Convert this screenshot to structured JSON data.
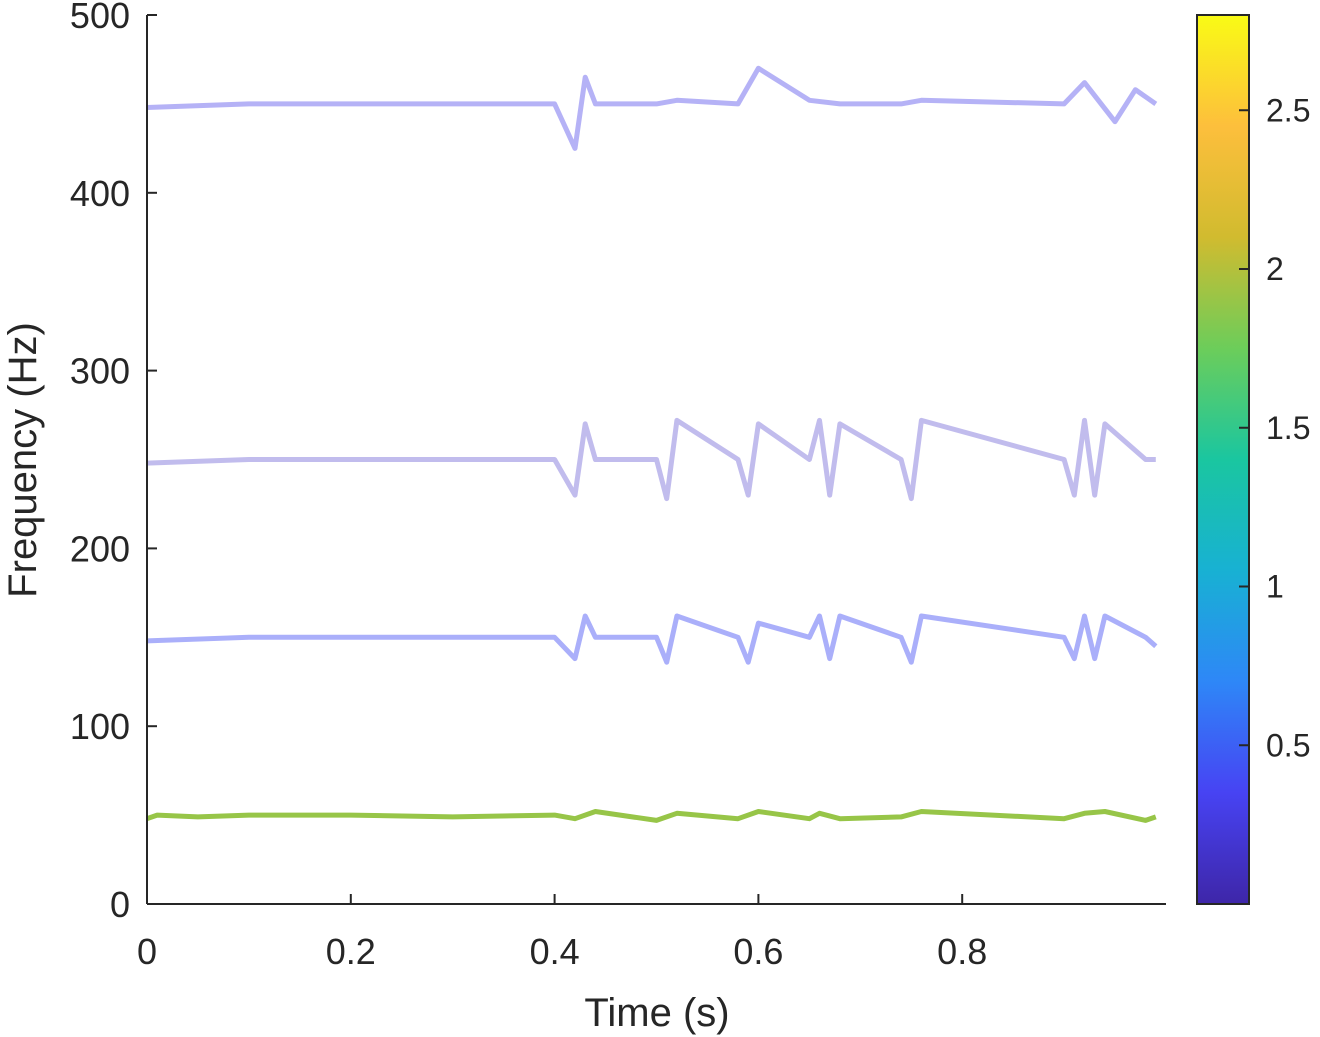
{
  "chart_data": {
    "type": "line",
    "title": "",
    "xlabel": "Time (s)",
    "ylabel": "Frequency (Hz)",
    "xlim": [
      0,
      1
    ],
    "ylim": [
      0,
      500
    ],
    "x_ticks": [
      0,
      0.2,
      0.4,
      0.6,
      0.8
    ],
    "x_tick_labels": [
      "0",
      "0.2",
      "0.4",
      "0.6",
      "0.8"
    ],
    "y_ticks": [
      0,
      100,
      200,
      300,
      400,
      500
    ],
    "y_tick_labels": [
      "0",
      "100",
      "200",
      "300",
      "400",
      "500"
    ],
    "grid": false,
    "legend": "none",
    "colorbar": {
      "range": [
        0,
        2.8
      ],
      "ticks": [
        0.5,
        1,
        1.5,
        2,
        2.5
      ],
      "tick_labels": [
        "0.5",
        "1",
        "1.5",
        "2",
        "2.5"
      ],
      "colormap": [
        "#3e26a8",
        "#4743f3",
        "#2e87f7",
        "#18b1d3",
        "#1ac6a0",
        "#6ccd5a",
        "#d1bb2f",
        "#fdbf3c",
        "#f9fb15"
      ]
    },
    "series": [
      {
        "frequency_hz": 50,
        "magnitude": 1.9,
        "x": [
          0.0,
          0.01,
          0.05,
          0.1,
          0.2,
          0.3,
          0.4,
          0.42,
          0.44,
          0.5,
          0.52,
          0.58,
          0.6,
          0.65,
          0.66,
          0.68,
          0.74,
          0.76,
          0.9,
          0.92,
          0.94,
          0.98,
          0.99
        ],
        "y": [
          48,
          50,
          49,
          50,
          50,
          49,
          50,
          48,
          52,
          47,
          51,
          48,
          52,
          48,
          51,
          48,
          49,
          52,
          48,
          51,
          52,
          47,
          49
        ]
      },
      {
        "frequency_hz": 150,
        "magnitude": 0.4,
        "x": [
          0.0,
          0.1,
          0.2,
          0.3,
          0.4,
          0.42,
          0.43,
          0.44,
          0.5,
          0.51,
          0.52,
          0.58,
          0.59,
          0.6,
          0.65,
          0.66,
          0.67,
          0.68,
          0.74,
          0.75,
          0.76,
          0.9,
          0.91,
          0.92,
          0.93,
          0.94,
          0.98,
          0.99
        ],
        "y": [
          148,
          150,
          150,
          150,
          150,
          138,
          162,
          150,
          150,
          136,
          162,
          150,
          136,
          158,
          150,
          162,
          138,
          162,
          150,
          136,
          162,
          150,
          138,
          162,
          138,
          162,
          150,
          145
        ]
      },
      {
        "frequency_hz": 250,
        "magnitude": 0.15,
        "x": [
          0.0,
          0.1,
          0.2,
          0.3,
          0.4,
          0.42,
          0.43,
          0.44,
          0.5,
          0.51,
          0.52,
          0.58,
          0.59,
          0.6,
          0.65,
          0.66,
          0.67,
          0.68,
          0.74,
          0.75,
          0.76,
          0.9,
          0.91,
          0.92,
          0.93,
          0.94,
          0.98,
          0.99
        ],
        "y": [
          248,
          250,
          250,
          250,
          250,
          230,
          270,
          250,
          250,
          228,
          272,
          250,
          230,
          270,
          250,
          272,
          230,
          270,
          250,
          228,
          272,
          250,
          230,
          272,
          230,
          270,
          250,
          250
        ]
      },
      {
        "frequency_hz": 450,
        "magnitude": 0.3,
        "x": [
          0.0,
          0.1,
          0.2,
          0.3,
          0.4,
          0.42,
          0.43,
          0.44,
          0.5,
          0.52,
          0.58,
          0.6,
          0.65,
          0.68,
          0.74,
          0.76,
          0.9,
          0.92,
          0.95,
          0.97,
          0.99
        ],
        "y": [
          448,
          450,
          450,
          450,
          450,
          425,
          465,
          450,
          450,
          452,
          450,
          470,
          452,
          450,
          450,
          452,
          450,
          462,
          440,
          458,
          450
        ]
      }
    ]
  }
}
